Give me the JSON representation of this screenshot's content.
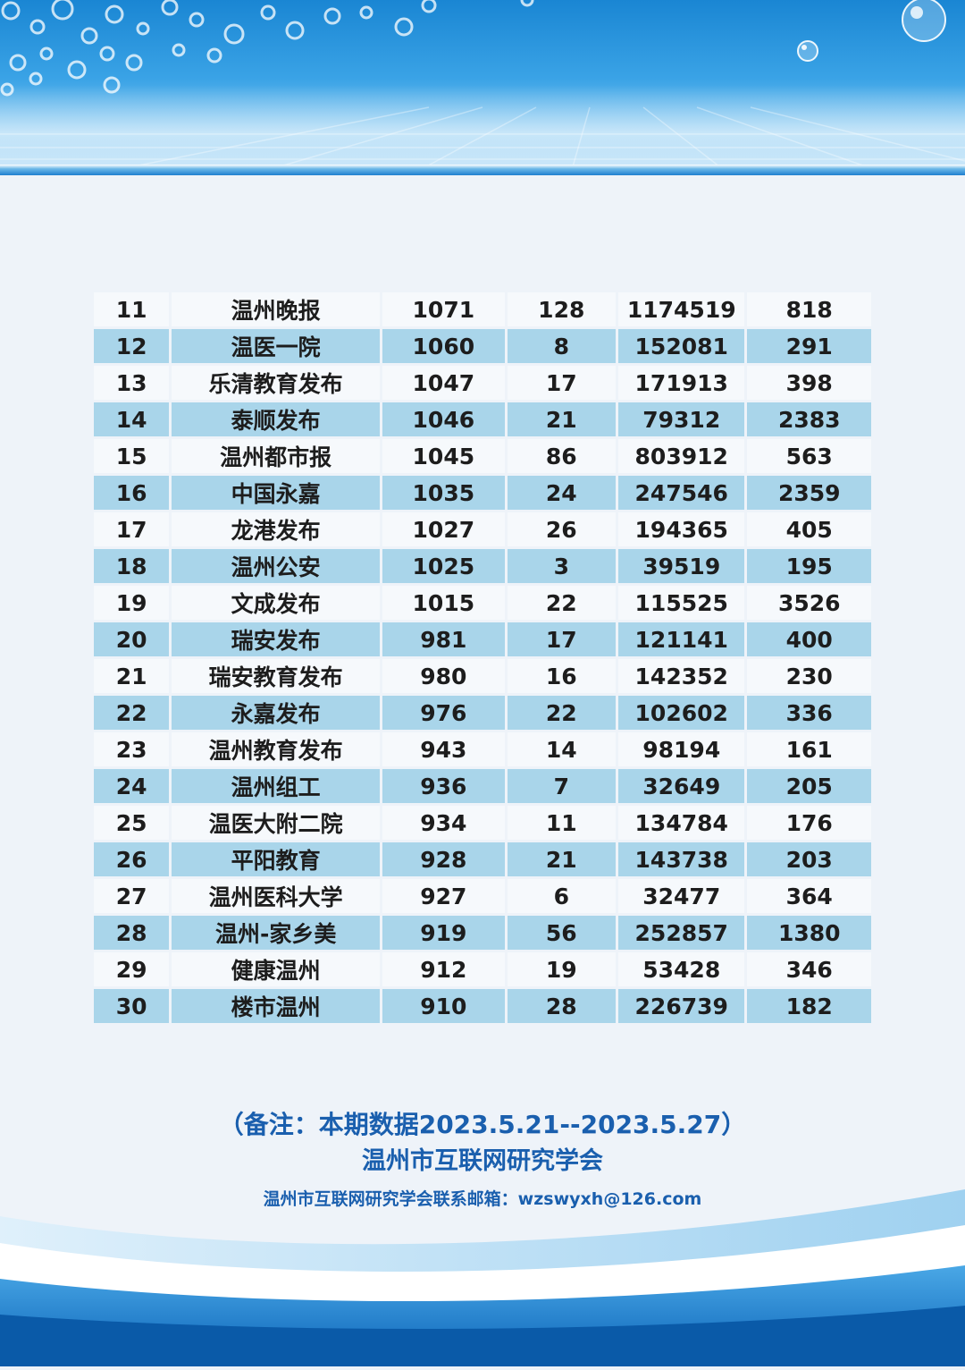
{
  "table": {
    "rows": [
      {
        "rank": "11",
        "name": "温州晚报",
        "c1": "1071",
        "c2": "128",
        "c3": "1174519",
        "c4": "818"
      },
      {
        "rank": "12",
        "name": "温医一院",
        "c1": "1060",
        "c2": "8",
        "c3": "152081",
        "c4": "291"
      },
      {
        "rank": "13",
        "name": "乐清教育发布",
        "c1": "1047",
        "c2": "17",
        "c3": "171913",
        "c4": "398"
      },
      {
        "rank": "14",
        "name": "泰顺发布",
        "c1": "1046",
        "c2": "21",
        "c3": "79312",
        "c4": "2383"
      },
      {
        "rank": "15",
        "name": "温州都市报",
        "c1": "1045",
        "c2": "86",
        "c3": "803912",
        "c4": "563"
      },
      {
        "rank": "16",
        "name": "中国永嘉",
        "c1": "1035",
        "c2": "24",
        "c3": "247546",
        "c4": "2359"
      },
      {
        "rank": "17",
        "name": "龙港发布",
        "c1": "1027",
        "c2": "26",
        "c3": "194365",
        "c4": "405"
      },
      {
        "rank": "18",
        "name": "温州公安",
        "c1": "1025",
        "c2": "3",
        "c3": "39519",
        "c4": "195"
      },
      {
        "rank": "19",
        "name": "文成发布",
        "c1": "1015",
        "c2": "22",
        "c3": "115525",
        "c4": "3526"
      },
      {
        "rank": "20",
        "name": "瑞安发布",
        "c1": "981",
        "c2": "17",
        "c3": "121141",
        "c4": "400"
      },
      {
        "rank": "21",
        "name": "瑞安教育发布",
        "c1": "980",
        "c2": "16",
        "c3": "142352",
        "c4": "230"
      },
      {
        "rank": "22",
        "name": "永嘉发布",
        "c1": "976",
        "c2": "22",
        "c3": "102602",
        "c4": "336"
      },
      {
        "rank": "23",
        "name": "温州教育发布",
        "c1": "943",
        "c2": "14",
        "c3": "98194",
        "c4": "161"
      },
      {
        "rank": "24",
        "name": "温州组工",
        "c1": "936",
        "c2": "7",
        "c3": "32649",
        "c4": "205"
      },
      {
        "rank": "25",
        "name": "温医大附二院",
        "c1": "934",
        "c2": "11",
        "c3": "134784",
        "c4": "176"
      },
      {
        "rank": "26",
        "name": "平阳教育",
        "c1": "928",
        "c2": "21",
        "c3": "143738",
        "c4": "203"
      },
      {
        "rank": "27",
        "name": "温州医科大学",
        "c1": "927",
        "c2": "6",
        "c3": "32477",
        "c4": "364"
      },
      {
        "rank": "28",
        "name": "温州-家乡美",
        "c1": "919",
        "c2": "56",
        "c3": "252857",
        "c4": "1380"
      },
      {
        "rank": "29",
        "name": "健康温州",
        "c1": "912",
        "c2": "19",
        "c3": "53428",
        "c4": "346"
      },
      {
        "rank": "30",
        "name": "楼市温州",
        "c1": "910",
        "c2": "28",
        "c3": "226739",
        "c4": "182"
      }
    ]
  },
  "notes": {
    "period": "（备注：本期数据2023.5.21--2023.5.27）",
    "org": "温州市互联网研究学会",
    "contact": "温州市互联网研究学会联系邮箱：wzswyxh@126.com"
  },
  "colors": {
    "row_light": "#f6f9fc",
    "row_blue": "#a9d5ea",
    "note_text": "#1a5fae",
    "header_blue": "#1a86d3"
  }
}
